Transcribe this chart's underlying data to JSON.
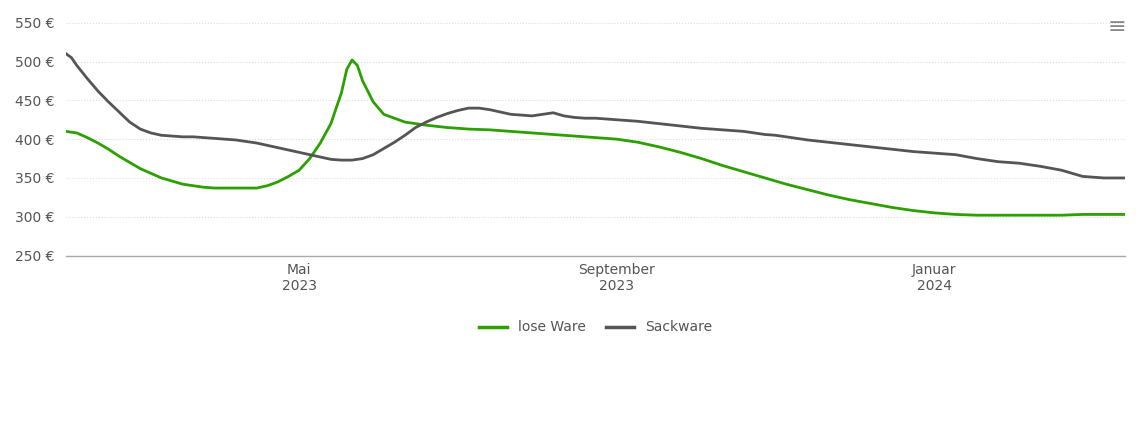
{
  "ylim": [
    250,
    560
  ],
  "yticks": [
    250,
    300,
    350,
    400,
    450,
    500,
    550
  ],
  "background_color": "#ffffff",
  "grid_color": "#dddddd",
  "lose_ware_color": "#2ca000",
  "sackware_color": "#555555",
  "legend_labels": [
    "lose Ware",
    "Sackware"
  ],
  "x_tick_labels": [
    "Mai\n2023",
    "September\n2023",
    "Januar\n2024"
  ],
  "x_tick_positions": [
    0.22,
    0.52,
    0.82
  ],
  "lose_ware_x": [
    0.0,
    0.01,
    0.02,
    0.03,
    0.04,
    0.05,
    0.06,
    0.07,
    0.08,
    0.09,
    0.1,
    0.11,
    0.12,
    0.13,
    0.14,
    0.15,
    0.16,
    0.17,
    0.18,
    0.19,
    0.2,
    0.21,
    0.22,
    0.23,
    0.24,
    0.25,
    0.26,
    0.265,
    0.27,
    0.275,
    0.28,
    0.29,
    0.3,
    0.32,
    0.34,
    0.36,
    0.38,
    0.4,
    0.42,
    0.44,
    0.46,
    0.48,
    0.5,
    0.52,
    0.54,
    0.56,
    0.58,
    0.6,
    0.62,
    0.64,
    0.66,
    0.68,
    0.7,
    0.72,
    0.74,
    0.76,
    0.78,
    0.8,
    0.82,
    0.84,
    0.86,
    0.88,
    0.9,
    0.92,
    0.94,
    0.96,
    0.98,
    1.0
  ],
  "lose_ware_y": [
    410,
    408,
    402,
    395,
    387,
    378,
    370,
    362,
    356,
    350,
    346,
    342,
    340,
    338,
    337,
    337,
    337,
    337,
    337,
    340,
    345,
    352,
    360,
    375,
    395,
    420,
    460,
    490,
    502,
    495,
    475,
    448,
    432,
    422,
    418,
    415,
    413,
    412,
    410,
    408,
    406,
    404,
    402,
    400,
    396,
    390,
    383,
    375,
    366,
    358,
    350,
    342,
    335,
    328,
    322,
    317,
    312,
    308,
    305,
    303,
    302,
    302,
    302,
    302,
    302,
    303,
    303,
    303
  ],
  "sackware_x": [
    0.0,
    0.005,
    0.01,
    0.02,
    0.03,
    0.04,
    0.05,
    0.06,
    0.07,
    0.08,
    0.09,
    0.1,
    0.11,
    0.12,
    0.13,
    0.14,
    0.15,
    0.16,
    0.17,
    0.18,
    0.19,
    0.2,
    0.21,
    0.22,
    0.23,
    0.24,
    0.25,
    0.26,
    0.27,
    0.28,
    0.29,
    0.3,
    0.31,
    0.32,
    0.33,
    0.34,
    0.35,
    0.36,
    0.37,
    0.38,
    0.39,
    0.4,
    0.41,
    0.42,
    0.43,
    0.44,
    0.45,
    0.46,
    0.47,
    0.48,
    0.49,
    0.5,
    0.52,
    0.54,
    0.56,
    0.58,
    0.6,
    0.62,
    0.64,
    0.65,
    0.66,
    0.67,
    0.68,
    0.69,
    0.7,
    0.72,
    0.74,
    0.76,
    0.78,
    0.8,
    0.82,
    0.84,
    0.86,
    0.87,
    0.88,
    0.9,
    0.92,
    0.94,
    0.96,
    0.98,
    1.0
  ],
  "sackware_y": [
    510,
    505,
    495,
    478,
    462,
    448,
    435,
    422,
    413,
    408,
    405,
    404,
    403,
    403,
    402,
    401,
    400,
    399,
    397,
    395,
    392,
    389,
    386,
    383,
    380,
    377,
    374,
    373,
    373,
    375,
    380,
    388,
    396,
    405,
    415,
    422,
    428,
    433,
    437,
    440,
    440,
    438,
    435,
    432,
    431,
    430,
    432,
    434,
    430,
    428,
    427,
    427,
    425,
    423,
    420,
    417,
    414,
    412,
    410,
    408,
    406,
    405,
    403,
    401,
    399,
    396,
    393,
    390,
    387,
    384,
    382,
    380,
    375,
    373,
    371,
    369,
    365,
    360,
    352,
    350,
    350
  ]
}
